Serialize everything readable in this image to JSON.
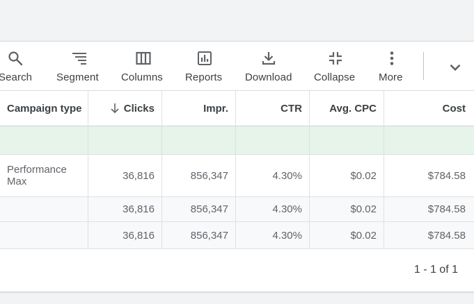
{
  "toolbar": {
    "items": [
      {
        "label": "Search",
        "icon": "search-icon"
      },
      {
        "label": "Segment",
        "icon": "segment-icon"
      },
      {
        "label": "Columns",
        "icon": "columns-icon"
      },
      {
        "label": "Reports",
        "icon": "reports-icon"
      },
      {
        "label": "Download",
        "icon": "download-icon"
      },
      {
        "label": "Collapse",
        "icon": "collapse-icon"
      },
      {
        "label": "More",
        "icon": "more-vert-icon"
      }
    ],
    "expand_icon": "chevron-down-icon"
  },
  "table": {
    "columns": [
      "Campaign type",
      "Clicks",
      "Impr.",
      "CTR",
      "Avg. CPC",
      "Cost"
    ],
    "sorted_column": "Clicks",
    "sort_direction": "descending",
    "rows": [
      {
        "campaign_type": "Performance Max",
        "clicks": "36,816",
        "impr": "856,347",
        "ctr": "4.30%",
        "avg_cpc": "$0.02",
        "cost": "$784.58"
      },
      {
        "campaign_type": "",
        "clicks": "36,816",
        "impr": "856,347",
        "ctr": "4.30%",
        "avg_cpc": "$0.02",
        "cost": "$784.58"
      },
      {
        "campaign_type": "",
        "clicks": "36,816",
        "impr": "856,347",
        "ctr": "4.30%",
        "avg_cpc": "$0.02",
        "cost": "$784.58"
      }
    ],
    "colors": {
      "totals_row_bg": "#e6f4ea",
      "summary_row_bg": "#f8f9fa"
    }
  },
  "pagination": {
    "text": "1 - 1 of 1"
  }
}
